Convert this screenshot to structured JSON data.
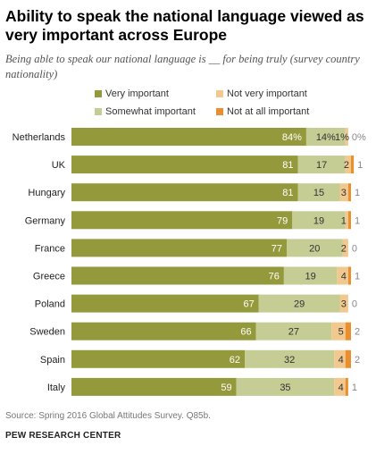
{
  "title": "Ability to speak the national language  viewed as very important across Europe",
  "subtitle": "Being able to speak our national language is __ for being truly (survey country nationality)",
  "source": "Source: Spring 2016 Global Attitudes Survey. Q85b.",
  "organization": "PEW RESEARCH CENTER",
  "colors": {
    "very": "#949a3b",
    "somewhat": "#c5cc94",
    "not_very": "#f1c98f",
    "not_at_all": "#e98f2e",
    "label_dark": "#333333",
    "label_light": "#ffffff"
  },
  "chart_data": {
    "type": "bar",
    "orientation": "horizontal",
    "stacked": true,
    "categories": [
      "Netherlands",
      "UK",
      "Hungary",
      "Germany",
      "France",
      "Greece",
      "Poland",
      "Sweden",
      "Spain",
      "Italy"
    ],
    "series": [
      {
        "name": "Very important",
        "values": [
          84,
          81,
          81,
          79,
          77,
          76,
          67,
          66,
          62,
          59
        ],
        "labels": [
          "84%",
          "81",
          "81",
          "79",
          "77",
          "76",
          "67",
          "66",
          "62",
          "59"
        ]
      },
      {
        "name": "Somewhat important",
        "values": [
          14,
          17,
          15,
          19,
          20,
          19,
          29,
          27,
          32,
          35
        ],
        "labels": [
          "14%",
          "17",
          "15",
          "19",
          "20",
          "19",
          "29",
          "27",
          "32",
          "35"
        ]
      },
      {
        "name": "Not very important",
        "values": [
          1,
          2,
          3,
          1,
          2,
          4,
          3,
          5,
          4,
          4
        ],
        "labels": [
          "1%",
          "2",
          "3",
          "1",
          "2",
          "4",
          "3",
          "5",
          "4",
          "4"
        ]
      },
      {
        "name": "Not at all important",
        "values": [
          0,
          1,
          1,
          1,
          0,
          1,
          0,
          2,
          2,
          1
        ],
        "labels": [
          "0%",
          "1",
          "1",
          "1",
          "0",
          "1",
          "0",
          "2",
          "2",
          "1"
        ]
      }
    ],
    "legend": {
      "position": "top",
      "order": [
        "Very important",
        "Not very important",
        "Somewhat important",
        "Not at all important"
      ]
    },
    "xlim": [
      0,
      100
    ],
    "grid": false
  }
}
